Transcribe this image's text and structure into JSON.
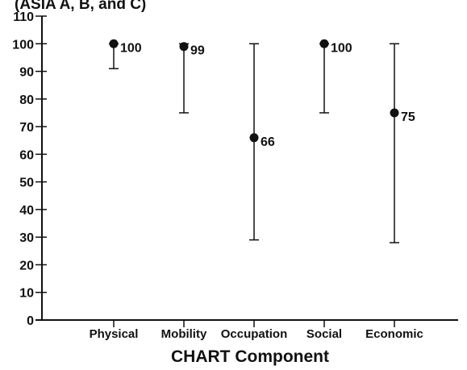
{
  "chart_data": {
    "type": "scatter",
    "title": "(ASIA A, B, and C)",
    "xlabel": "CHART Component",
    "ylabel": "",
    "ylim": [
      0,
      110
    ],
    "yticks": [
      0,
      10,
      20,
      30,
      40,
      50,
      60,
      70,
      80,
      90,
      100,
      110
    ],
    "categories": [
      "Physical",
      "Mobility",
      "Occupation",
      "Social",
      "Economic"
    ],
    "values": [
      100,
      99,
      66,
      100,
      75
    ],
    "labels": [
      "100",
      "99",
      "66",
      "100",
      "75"
    ],
    "error_low": [
      91,
      75,
      29,
      75,
      28
    ],
    "error_high": [
      100,
      100,
      100,
      100,
      100
    ],
    "grid": false,
    "legend": "none",
    "colors": {
      "marker": "#111111",
      "axis": "#111111",
      "text": "#111111"
    }
  }
}
